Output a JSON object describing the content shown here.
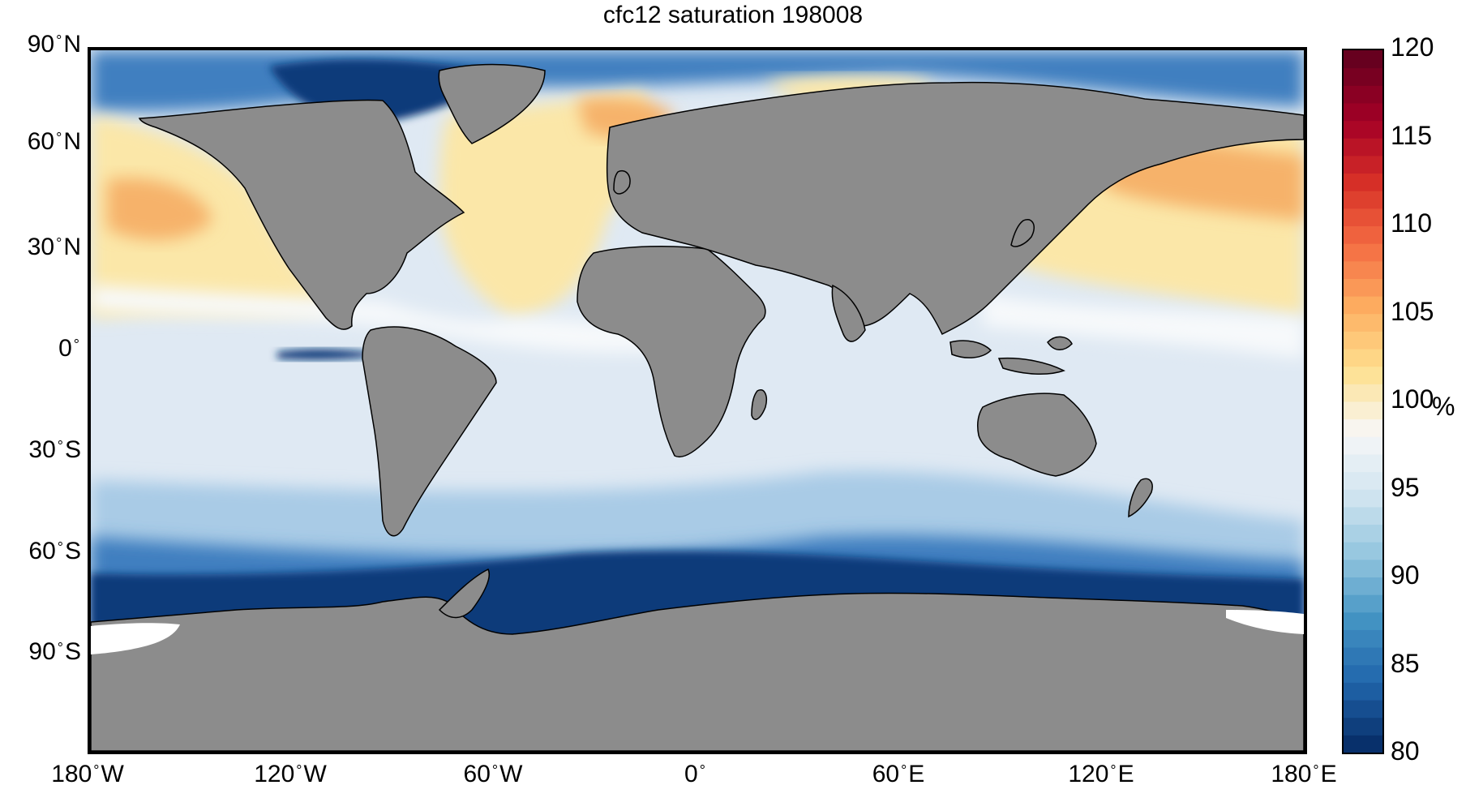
{
  "title": "cfc12 saturation 198008",
  "lat_labels": [
    {
      "deg": "90",
      "hemi": "N"
    },
    {
      "deg": "60",
      "hemi": "N"
    },
    {
      "deg": "30",
      "hemi": "N"
    },
    {
      "deg": "0",
      "hemi": ""
    },
    {
      "deg": "30",
      "hemi": "S"
    },
    {
      "deg": "60",
      "hemi": "S"
    },
    {
      "deg": "90",
      "hemi": "S"
    }
  ],
  "lon_labels": [
    {
      "deg": "180",
      "hemi": "W"
    },
    {
      "deg": "120",
      "hemi": "W"
    },
    {
      "deg": "60",
      "hemi": "W"
    },
    {
      "deg": "0",
      "hemi": ""
    },
    {
      "deg": "60",
      "hemi": "E"
    },
    {
      "deg": "120",
      "hemi": "E"
    },
    {
      "deg": "180",
      "hemi": "E"
    }
  ],
  "colorbar": {
    "ticks": [
      "120",
      "115",
      "110",
      "105",
      "100",
      "95",
      "90",
      "85",
      "80"
    ],
    "unit": "%",
    "range": [
      80,
      120
    ],
    "colors": [
      "#08306b",
      "#2166ac",
      "#4393c3",
      "#92c5de",
      "#d1e5f0",
      "#f7f7f7",
      "#fee090",
      "#fdae61",
      "#f46d43",
      "#d73027",
      "#a50026",
      "#67001f"
    ]
  },
  "map": {
    "land_color": "#8c8c8c",
    "region_colors": {
      "deep_blue": "#0b3b7a",
      "mid_blue": "#3f7fc0",
      "light_blue": "#a9cbe6",
      "pale_blue": "#dfe9f3",
      "white": "#f7f9fb",
      "pale_yellow": "#fbe7a8",
      "orange": "#f6b26b",
      "red": "#d7301f"
    }
  }
}
